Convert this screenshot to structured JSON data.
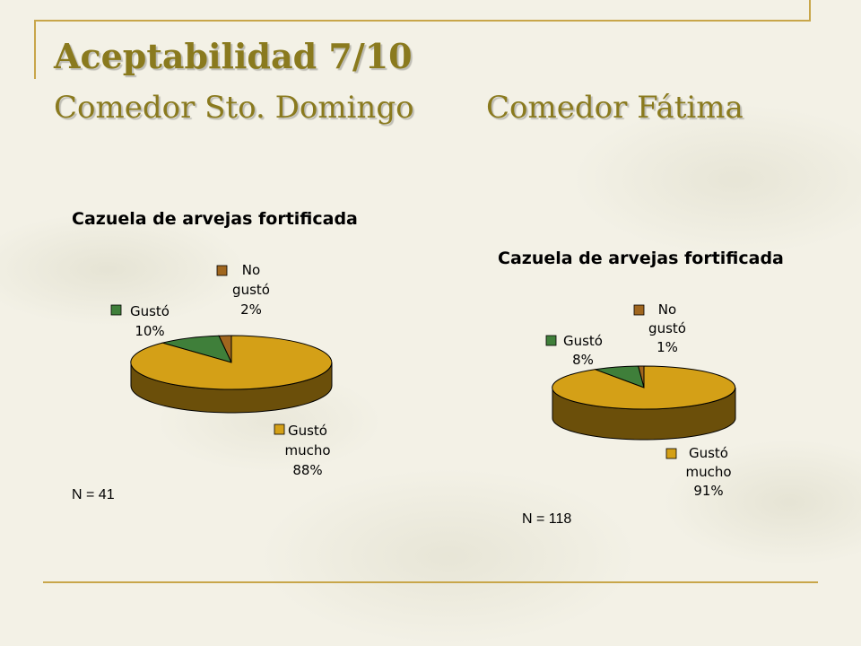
{
  "slide": {
    "title": "Aceptabilidad 7/10",
    "subtitle_left": "Comedor Sto. Domingo",
    "subtitle_right": "Comedor Fátima"
  },
  "colors": {
    "gusto_mucho": "#d4a017",
    "gusto_mucho_side": "#6b4f0a",
    "gusto": "#3f7f3a",
    "no_gusto": "#a0661e",
    "frame": "#c8a64a",
    "title": "#8a7a1e"
  },
  "chart_data": [
    {
      "type": "pie",
      "title": "Cazuela de arvejas fortificada",
      "slices": [
        {
          "key": "no_gusto",
          "label_lines": [
            "No",
            "gustó",
            "2%"
          ],
          "value": 2
        },
        {
          "key": "gusto",
          "label_lines": [
            "Gustó",
            "10%"
          ],
          "value": 10
        },
        {
          "key": "gusto_mucho",
          "label_lines": [
            "Gustó",
            "mucho",
            "88%"
          ],
          "value": 88
        }
      ],
      "n_label": "N = 41"
    },
    {
      "type": "pie",
      "title": "Cazuela de arvejas fortificada",
      "slices": [
        {
          "key": "no_gusto",
          "label_lines": [
            "No",
            "gustó",
            "1%"
          ],
          "value": 1
        },
        {
          "key": "gusto",
          "label_lines": [
            "Gustó",
            "8%"
          ],
          "value": 8
        },
        {
          "key": "gusto_mucho",
          "label_lines": [
            "Gustó",
            "mucho",
            "91%"
          ],
          "value": 91
        }
      ],
      "n_label": "N = 118"
    }
  ]
}
